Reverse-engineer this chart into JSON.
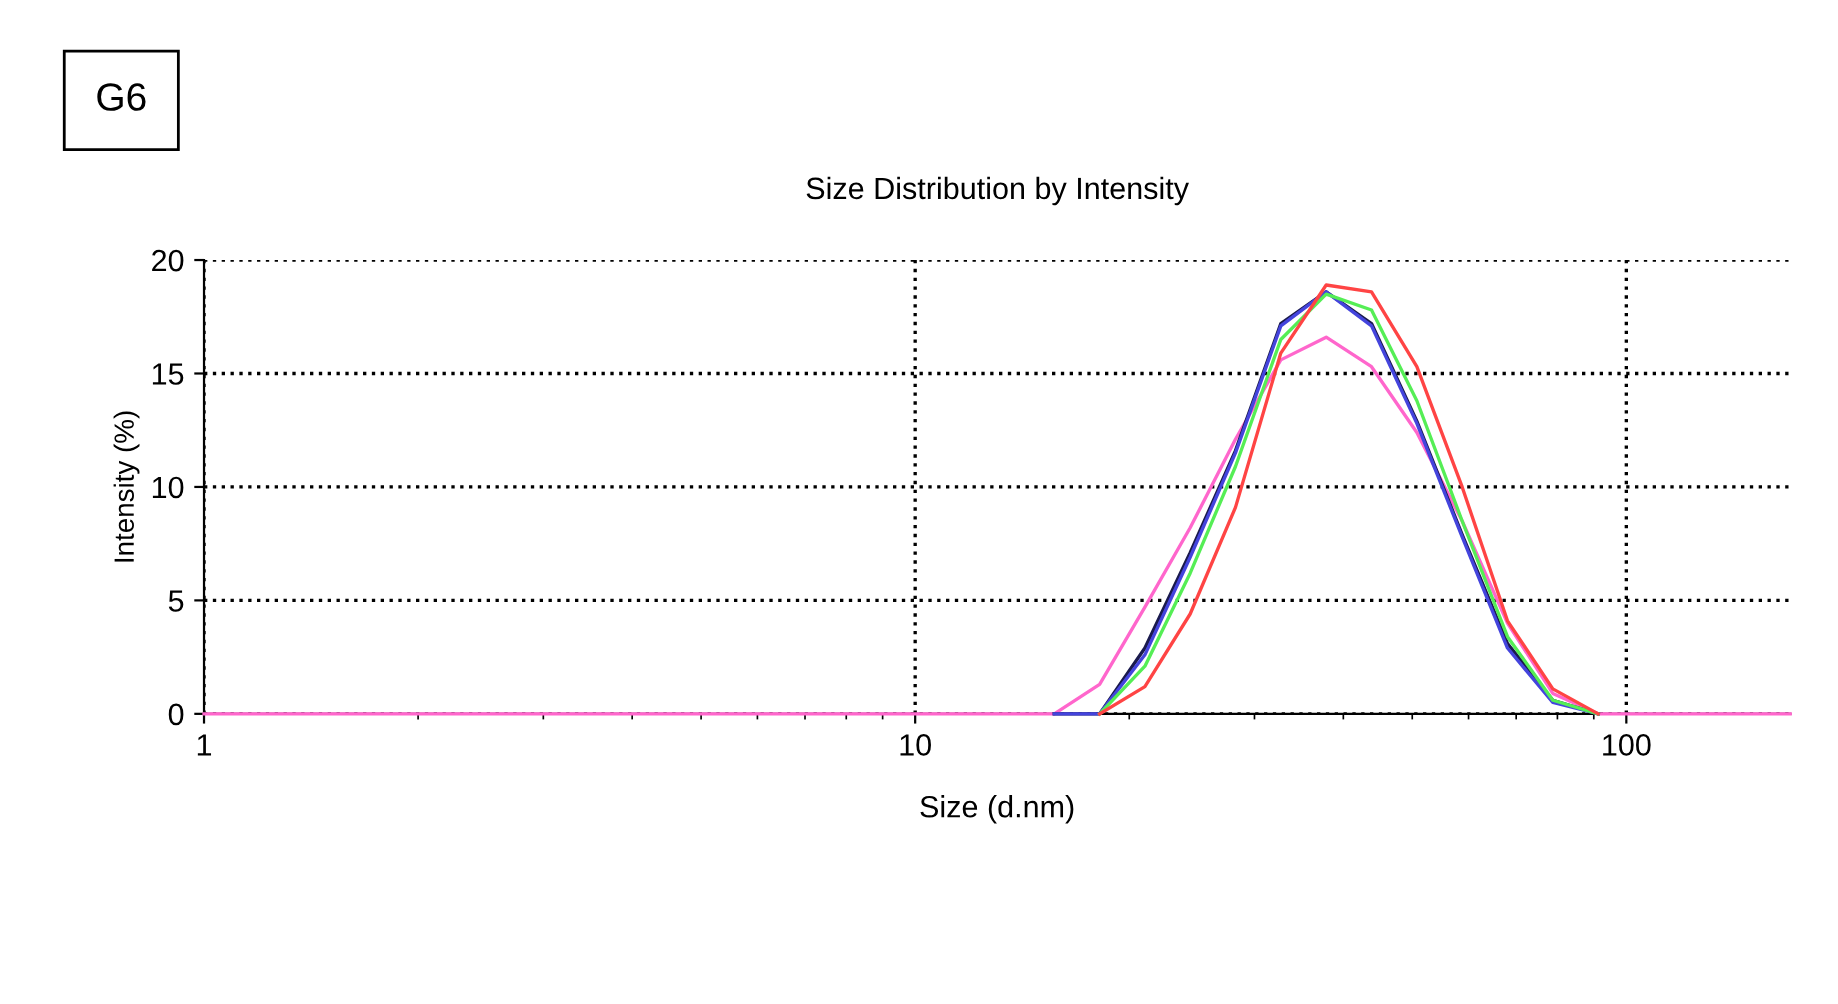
{
  "chart_data": {
    "type": "line",
    "title": "Size Distribution by Intensity",
    "xlabel": "Size (d.nm)",
    "ylabel": "Intensity (%)",
    "log": "x",
    "xlim": [
      1,
      170
    ],
    "xticks": [
      1,
      10,
      100
    ],
    "ylim": [
      0,
      20
    ],
    "yticks": [
      0,
      5,
      10,
      15,
      20
    ],
    "grid": true,
    "marker": "none",
    "legend": false,
    "annotations": [
      "G6"
    ],
    "series": [
      {
        "color": "#ff66cc",
        "x": [
          1,
          15.69,
          18.17,
          21.04,
          24.36,
          28.21,
          32.67,
          37.84,
          43.82,
          50.75,
          58.77,
          68.06,
          78.82,
          91.28,
          170
        ],
        "values": [
          0,
          0,
          1.3,
          4.7,
          8.2,
          12.1,
          15.6,
          16.6,
          15.3,
          12.4,
          8.5,
          4.0,
          0.9,
          0,
          0
        ]
      },
      {
        "color": "#1a1a4d",
        "x": [
          15.69,
          18.17,
          21.04,
          24.36,
          28.21,
          32.67,
          37.84,
          43.82,
          50.75,
          58.77,
          68.06,
          78.82,
          91.28
        ],
        "values": [
          0,
          0,
          2.9,
          7.1,
          11.6,
          17.2,
          18.6,
          17.2,
          12.9,
          7.9,
          3.1,
          0.6,
          0
        ]
      },
      {
        "color": "#4444dd",
        "x": [
          15.69,
          18.17,
          21.04,
          24.36,
          28.21,
          32.67,
          37.84,
          43.82,
          50.75,
          58.77,
          68.06,
          78.82,
          91.28
        ],
        "values": [
          0,
          0,
          2.6,
          6.9,
          11.5,
          17.1,
          18.6,
          17.1,
          12.8,
          7.8,
          2.9,
          0.5,
          0
        ]
      },
      {
        "color": "#55ee55",
        "x": [
          18.17,
          21.04,
          24.36,
          28.21,
          32.67,
          37.84,
          43.82,
          50.75,
          58.77,
          68.06,
          78.82,
          91.28
        ],
        "values": [
          0,
          2.1,
          6.2,
          10.9,
          16.5,
          18.5,
          17.8,
          13.8,
          8.5,
          3.4,
          0.6,
          0
        ]
      },
      {
        "color": "#ff4444",
        "x": [
          18.17,
          21.04,
          24.36,
          28.21,
          32.67,
          37.84,
          43.82,
          50.75,
          58.77,
          68.06,
          78.82,
          91.28
        ],
        "values": [
          0,
          1.2,
          4.4,
          9.1,
          15.9,
          18.9,
          18.6,
          15.3,
          10.0,
          4.1,
          1.1,
          0
        ]
      }
    ]
  }
}
